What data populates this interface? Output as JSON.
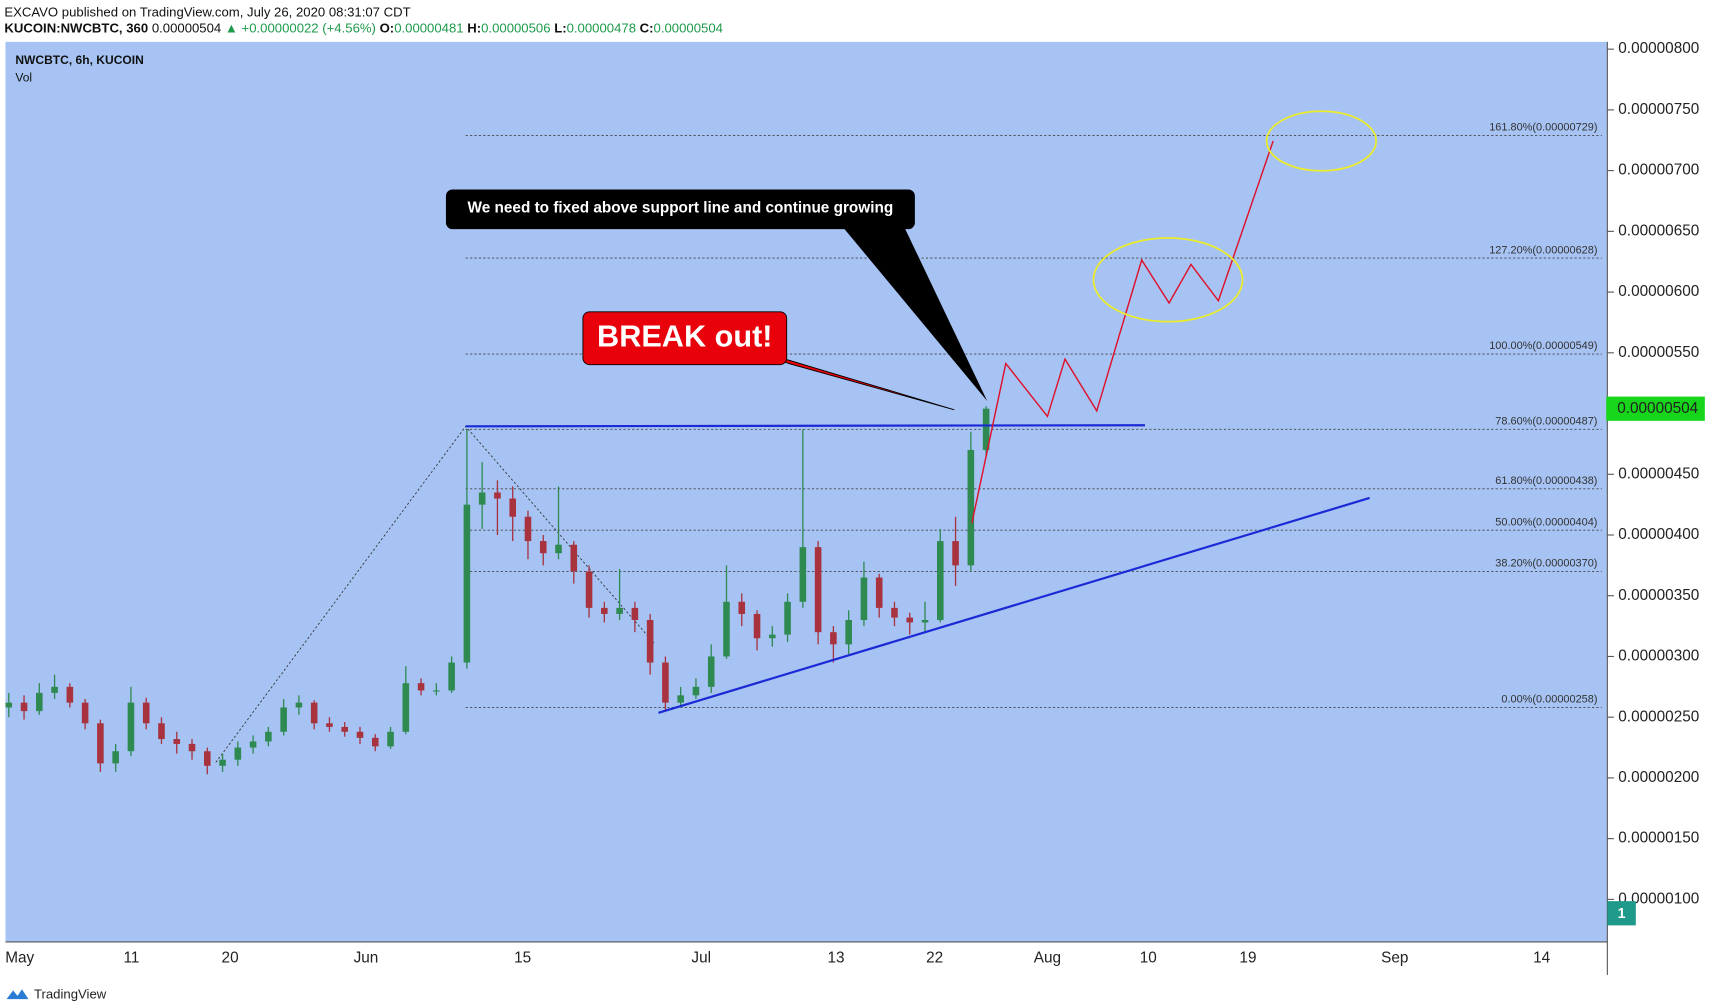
{
  "header": {
    "author_line": "EXCAVO published on TradingView.com, July 26, 2020 08:31:07 CDT",
    "symbol": "KUCOIN:NWCBTC, 360",
    "last": "0.00000504",
    "change": "▲ +0.00000022 (+4.56%)",
    "ohlc": [
      {
        "label": "O:",
        "value": "0.00000481"
      },
      {
        "label": "H:",
        "value": "0.00000506"
      },
      {
        "label": "L:",
        "value": "0.00000478"
      },
      {
        "label": "C:",
        "value": "0.00000504"
      }
    ]
  },
  "legend": {
    "title": "NWCBTC, 6h, KUCOIN",
    "volume": "Vol"
  },
  "price_tag": "0.00000504",
  "badge": "1",
  "footer": "TradingView",
  "callouts": {
    "note": "We need to fixed above support line and continue growing",
    "breakout": "BREAK out!"
  },
  "x_labels": [
    "May",
    "11",
    "20",
    "Jun",
    "15",
    "Jul",
    "13",
    "22",
    "Aug",
    "10",
    "19",
    "Sep",
    "14"
  ],
  "fib_levels": [
    {
      "label": "161.80%(0.00000729)",
      "value": 7.29e-06
    },
    {
      "label": "127.20%(0.00000628)",
      "value": 6.28e-06
    },
    {
      "label": "100.00%(0.00000549)",
      "value": 5.49e-06
    },
    {
      "label": "78.60%(0.00000487)",
      "value": 4.87e-06
    },
    {
      "label": "61.80%(0.00000438)",
      "value": 4.38e-06
    },
    {
      "label": "50.00%(0.00000404)",
      "value": 4.04e-06
    },
    {
      "label": "38.20%(0.00000370)",
      "value": 3.7e-06
    },
    {
      "label": "0.00%(0.00000258)",
      "value": 2.58e-06
    }
  ],
  "chart_data": {
    "type": "candlestick",
    "ylim": [
      6.5e-07,
      8.06e-06
    ],
    "yticks": [
      {
        "value": 8e-06,
        "label": "0.00000800"
      },
      {
        "value": 7.5e-06,
        "label": "0.00000750"
      },
      {
        "value": 7e-06,
        "label": "0.00000700"
      },
      {
        "value": 6.5e-06,
        "label": "0.00000650"
      },
      {
        "value": 6e-06,
        "label": "0.00000600"
      },
      {
        "value": 5.5e-06,
        "label": "0.00000550"
      },
      {
        "value": 5e-06,
        "label": "0.00000500"
      },
      {
        "value": 4.5e-06,
        "label": "0.00000450"
      },
      {
        "value": 4e-06,
        "label": "0.00000400"
      },
      {
        "value": 3.5e-06,
        "label": "0.00000350"
      },
      {
        "value": 3e-06,
        "label": "0.00000300"
      },
      {
        "value": 2.5e-06,
        "label": "0.00000250"
      },
      {
        "value": 2e-06,
        "label": "0.00000200"
      },
      {
        "value": 1.5e-06,
        "label": "0.00000150"
      },
      {
        "value": 1e-06,
        "label": "0.00000100"
      }
    ],
    "up_color": "#2f8a52",
    "down_color": "#a8323e",
    "candles": {
      "open": [
        2.58e-06,
        2.62e-06,
        2.55e-06,
        2.7e-06,
        2.75e-06,
        2.62e-06,
        2.45e-06,
        2.12e-06,
        2.22e-06,
        2.62e-06,
        2.45e-06,
        2.32e-06,
        2.28e-06,
        2.22e-06,
        2.1e-06,
        2.15e-06,
        2.25e-06,
        2.3e-06,
        2.38e-06,
        2.58e-06,
        2.62e-06,
        2.45e-06,
        2.42e-06,
        2.38e-06,
        2.33e-06,
        2.26e-06,
        2.38e-06,
        2.78e-06,
        2.72e-06,
        2.72e-06,
        2.95e-06,
        4.25e-06,
        4.35e-06,
        4.3e-06,
        4.15e-06,
        3.95e-06,
        3.85e-06,
        3.92e-06,
        3.7e-06,
        3.4e-06,
        3.35e-06,
        3.4e-06,
        3.3e-06,
        2.95e-06,
        2.62e-06,
        2.68e-06,
        2.75e-06,
        3e-06,
        3.45e-06,
        3.35e-06,
        3.15e-06,
        3.18e-06,
        3.45e-06,
        3.9e-06,
        3.2e-06,
        3.1e-06,
        3.3e-06,
        3.65e-06,
        3.4e-06,
        3.32e-06,
        3.28e-06,
        3.3e-06,
        3.95e-06,
        3.75e-06,
        4.7e-06
      ],
      "high": [
        2.7e-06,
        2.68e-06,
        2.78e-06,
        2.85e-06,
        2.78e-06,
        2.65e-06,
        2.48e-06,
        2.28e-06,
        2.75e-06,
        2.66e-06,
        2.5e-06,
        2.38e-06,
        2.32e-06,
        2.25e-06,
        2.2e-06,
        2.3e-06,
        2.35e-06,
        2.42e-06,
        2.65e-06,
        2.68e-06,
        2.64e-06,
        2.5e-06,
        2.46e-06,
        2.42e-06,
        2.36e-06,
        2.42e-06,
        2.92e-06,
        2.82e-06,
        2.78e-06,
        3e-06,
        4.87e-06,
        4.6e-06,
        4.45e-06,
        4.4e-06,
        4.2e-06,
        4e-06,
        4.4e-06,
        3.95e-06,
        3.75e-06,
        3.45e-06,
        3.72e-06,
        3.45e-06,
        3.35e-06,
        3e-06,
        2.75e-06,
        2.82e-06,
        3.1e-06,
        3.75e-06,
        3.52e-06,
        3.38e-06,
        3.25e-06,
        3.52e-06,
        4.87e-06,
        3.95e-06,
        3.25e-06,
        3.38e-06,
        3.78e-06,
        3.68e-06,
        3.45e-06,
        3.36e-06,
        3.45e-06,
        4.05e-06,
        4.15e-06,
        4.85e-06,
        5.06e-06
      ],
      "low": [
        2.5e-06,
        2.48e-06,
        2.52e-06,
        2.65e-06,
        2.58e-06,
        2.4e-06,
        2.05e-06,
        2.05e-06,
        2.18e-06,
        2.4e-06,
        2.28e-06,
        2.2e-06,
        2.15e-06,
        2.03e-06,
        2.05e-06,
        2.1e-06,
        2.2e-06,
        2.26e-06,
        2.35e-06,
        2.52e-06,
        2.4e-06,
        2.38e-06,
        2.34e-06,
        2.28e-06,
        2.22e-06,
        2.24e-06,
        2.36e-06,
        2.68e-06,
        2.68e-06,
        2.7e-06,
        2.9e-06,
        4.05e-06,
        4e-06,
        3.95e-06,
        3.8e-06,
        3.75e-06,
        3.8e-06,
        3.6e-06,
        3.32e-06,
        3.28e-06,
        3.3e-06,
        3.2e-06,
        2.85e-06,
        2.55e-06,
        2.58e-06,
        2.65e-06,
        2.7e-06,
        2.98e-06,
        3.25e-06,
        3.05e-06,
        3.08e-06,
        3.12e-06,
        3.4e-06,
        3.1e-06,
        2.95e-06,
        3.02e-06,
        3.25e-06,
        3.32e-06,
        3.25e-06,
        3.18e-06,
        3.2e-06,
        3.28e-06,
        3.58e-06,
        3.7e-06,
        4.65e-06
      ],
      "close": [
        2.62e-06,
        2.55e-06,
        2.7e-06,
        2.75e-06,
        2.62e-06,
        2.45e-06,
        2.12e-06,
        2.22e-06,
        2.62e-06,
        2.45e-06,
        2.32e-06,
        2.28e-06,
        2.22e-06,
        2.1e-06,
        2.15e-06,
        2.25e-06,
        2.3e-06,
        2.38e-06,
        2.58e-06,
        2.62e-06,
        2.45e-06,
        2.42e-06,
        2.38e-06,
        2.33e-06,
        2.26e-06,
        2.38e-06,
        2.78e-06,
        2.72e-06,
        2.72e-06,
        2.95e-06,
        4.25e-06,
        4.35e-06,
        4.3e-06,
        4.15e-06,
        3.95e-06,
        3.85e-06,
        3.92e-06,
        3.7e-06,
        3.4e-06,
        3.35e-06,
        3.4e-06,
        3.3e-06,
        2.95e-06,
        2.62e-06,
        2.68e-06,
        2.75e-06,
        3e-06,
        3.45e-06,
        3.35e-06,
        3.15e-06,
        3.18e-06,
        3.45e-06,
        3.9e-06,
        3.2e-06,
        3.1e-06,
        3.3e-06,
        3.65e-06,
        3.4e-06,
        3.32e-06,
        3.28e-06,
        3.3e-06,
        3.95e-06,
        3.75e-06,
        4.7e-06,
        5.04e-06
      ]
    }
  }
}
